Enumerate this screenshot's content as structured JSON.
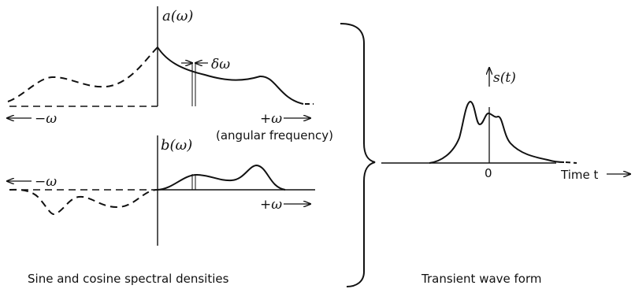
{
  "panels": {
    "cosine": {
      "axis_label": "a(ω)",
      "delta_label": "δω",
      "neg_label": "−ω",
      "pos_label": "+ω",
      "axis_note": "(angular frequency)"
    },
    "sine": {
      "axis_label": "b(ω)",
      "neg_label": "−ω",
      "pos_label": "+ω"
    },
    "transient": {
      "axis_label": "s(t)",
      "origin_label": "0",
      "time_label": "Time t"
    }
  },
  "captions": {
    "left": "Sine and cosine spectral densities",
    "right": "Transient wave form"
  },
  "colors": {
    "ink": "#111111",
    "background": "#ffffff"
  }
}
